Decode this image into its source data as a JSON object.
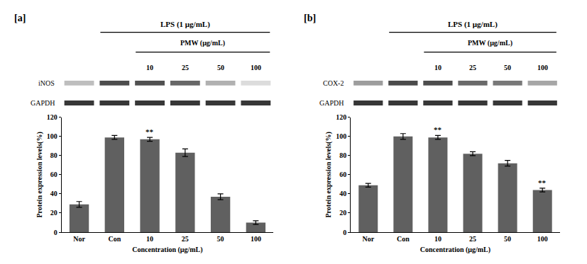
{
  "chart_data": [
    {
      "type": "bar",
      "title": "[a]",
      "categories": [
        "Nor",
        "Con",
        "10",
        "25",
        "50",
        "100"
      ],
      "values": [
        29,
        99,
        97,
        83,
        37,
        10
      ],
      "errors": [
        3,
        2,
        2,
        4,
        3,
        2
      ],
      "color": "#606060",
      "xlabel": "Concentration (μg/mL)",
      "ylabel": "Protein expression levels(%)",
      "ylim": [
        0,
        120
      ],
      "yticks": [
        0,
        20,
        40,
        60,
        80,
        100,
        120
      ],
      "grid": false,
      "annotations": [
        {
          "category": "10",
          "text": "**"
        }
      ],
      "blot": {
        "header": "LPS (1 μg/mL)",
        "subheader": "PMW (μg/mL)",
        "lanes": [
          "10",
          "25",
          "50",
          "100"
        ],
        "rows": [
          "iNOS",
          "GAPDH"
        ]
      }
    },
    {
      "type": "bar",
      "title": "[b]",
      "categories": [
        "Nor",
        "Con",
        "10",
        "25",
        "50",
        "100"
      ],
      "values": [
        49,
        100,
        99,
        82,
        72,
        44
      ],
      "errors": [
        2,
        3,
        2,
        2,
        3,
        2
      ],
      "color": "#606060",
      "xlabel": "Concentration (μg/mL)",
      "ylabel": "Protein expression levels(%)",
      "ylim": [
        0,
        120
      ],
      "yticks": [
        0,
        20,
        40,
        60,
        80,
        100,
        120
      ],
      "grid": false,
      "annotations": [
        {
          "category": "10",
          "text": "**"
        },
        {
          "category": "100",
          "text": "**"
        }
      ],
      "blot": {
        "header": "LPS (1 μg/mL)",
        "subheader": "PMW (μg/mL)",
        "lanes": [
          "10",
          "25",
          "50",
          "100"
        ],
        "rows": [
          "COX-2",
          "GAPDH"
        ]
      }
    }
  ]
}
